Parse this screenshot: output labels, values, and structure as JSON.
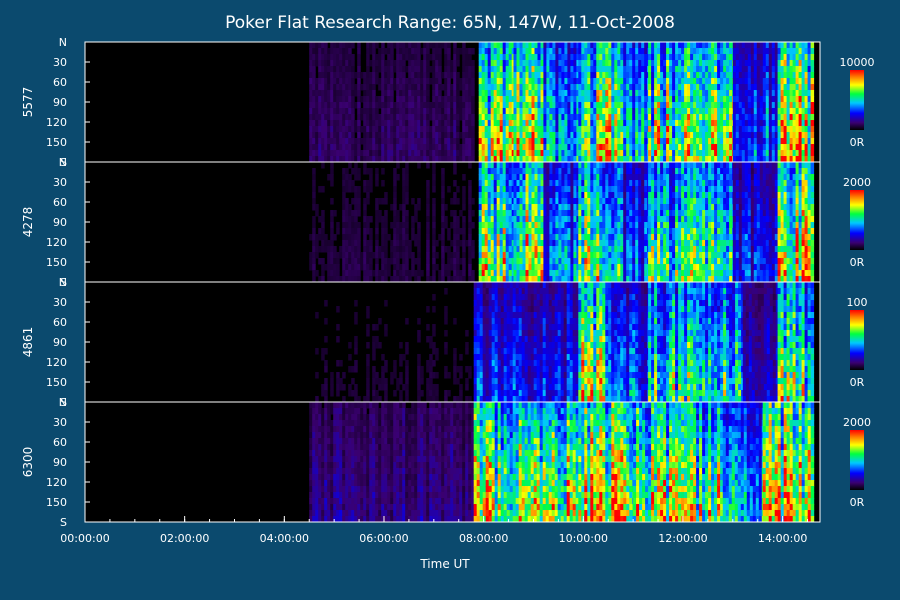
{
  "chart_data": {
    "type": "heatmap",
    "title": "Poker Flat Research Range: 65N, 147W, 11-Oct-2008",
    "xlabel": "Time UT",
    "x_ticks": [
      "00:00:00",
      "02:00:00",
      "04:00:00",
      "06:00:00",
      "08:00:00",
      "10:00:00",
      "12:00:00",
      "14:00:00"
    ],
    "x_range": [
      "00:00:00",
      "14:45:00"
    ],
    "y_ticks": [
      "N",
      "30",
      "60",
      "90",
      "120",
      "150",
      "S"
    ],
    "y_range": [
      0,
      180
    ],
    "grid": false,
    "panels": [
      {
        "name": "5577",
        "colorbar_max": "10000",
        "colorbar_min": "0R",
        "activity": [
          {
            "start_h": 4.5,
            "end_h": 7.8,
            "level": 0.12
          },
          {
            "start_h": 7.9,
            "end_h": 8.6,
            "level": 0.8
          },
          {
            "start_h": 8.6,
            "end_h": 9.2,
            "level": 0.9
          },
          {
            "start_h": 9.2,
            "end_h": 9.9,
            "level": 0.55
          },
          {
            "start_h": 9.9,
            "end_h": 10.8,
            "level": 0.85
          },
          {
            "start_h": 10.8,
            "end_h": 11.3,
            "level": 0.5
          },
          {
            "start_h": 11.3,
            "end_h": 13.0,
            "level": 0.8
          },
          {
            "start_h": 13.0,
            "end_h": 13.9,
            "level": 0.45
          },
          {
            "start_h": 13.9,
            "end_h": 14.6,
            "level": 0.95
          }
        ]
      },
      {
        "name": "4278",
        "colorbar_max": "2000",
        "colorbar_min": "0R",
        "activity": [
          {
            "start_h": 4.5,
            "end_h": 7.8,
            "level": 0.08
          },
          {
            "start_h": 7.9,
            "end_h": 8.6,
            "level": 0.75
          },
          {
            "start_h": 8.6,
            "end_h": 9.2,
            "level": 0.85
          },
          {
            "start_h": 9.2,
            "end_h": 9.9,
            "level": 0.45
          },
          {
            "start_h": 9.9,
            "end_h": 10.8,
            "level": 0.8
          },
          {
            "start_h": 10.8,
            "end_h": 11.3,
            "level": 0.4
          },
          {
            "start_h": 11.3,
            "end_h": 13.0,
            "level": 0.7
          },
          {
            "start_h": 13.0,
            "end_h": 13.9,
            "level": 0.35
          },
          {
            "start_h": 13.9,
            "end_h": 14.6,
            "level": 0.95
          }
        ]
      },
      {
        "name": "4861",
        "colorbar_max": "100",
        "colorbar_min": "0R",
        "activity": [
          {
            "start_h": 4.5,
            "end_h": 7.8,
            "level": 0.06
          },
          {
            "start_h": 7.8,
            "end_h": 9.9,
            "level": 0.35
          },
          {
            "start_h": 9.9,
            "end_h": 10.5,
            "level": 0.8
          },
          {
            "start_h": 10.5,
            "end_h": 11.3,
            "level": 0.45
          },
          {
            "start_h": 11.3,
            "end_h": 13.2,
            "level": 0.65
          },
          {
            "start_h": 13.2,
            "end_h": 13.9,
            "level": 0.3
          },
          {
            "start_h": 13.9,
            "end_h": 14.6,
            "level": 0.75
          }
        ]
      },
      {
        "name": "6300",
        "colorbar_max": "2000",
        "colorbar_min": "0R",
        "activity": [
          {
            "start_h": 4.5,
            "end_h": 7.8,
            "level": 0.18
          },
          {
            "start_h": 7.8,
            "end_h": 9.9,
            "level": 0.85
          },
          {
            "start_h": 9.9,
            "end_h": 11.0,
            "level": 0.95
          },
          {
            "start_h": 11.0,
            "end_h": 12.8,
            "level": 0.8
          },
          {
            "start_h": 12.8,
            "end_h": 13.6,
            "level": 0.55
          },
          {
            "start_h": 13.6,
            "end_h": 14.6,
            "level": 0.95
          }
        ]
      }
    ]
  }
}
